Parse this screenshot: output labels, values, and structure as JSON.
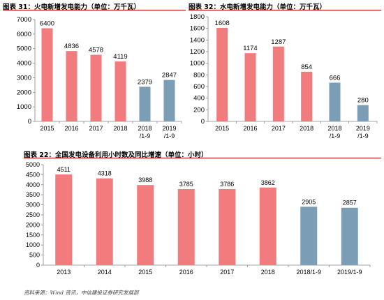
{
  "colors": {
    "red": "#f27b7d",
    "blue": "#7b9db5",
    "title_rule": "#c00000",
    "axis": "#888888",
    "label": "#000000"
  },
  "chart_data": [
    {
      "type": "bar",
      "title": "图表 31：火电新增发电能力（单位：万千瓦）",
      "categories": [
        "2015",
        "2016",
        "2017",
        "2018",
        "2018\n/1-9",
        "2019\n/1-9"
      ],
      "values": [
        6400,
        4836,
        4578,
        4119,
        2379,
        2847
      ],
      "bar_colors": [
        "red",
        "red",
        "red",
        "red",
        "blue",
        "blue"
      ],
      "ylim": [
        0,
        7000
      ],
      "yticks": [
        0,
        1000,
        2000,
        3000,
        4000,
        5000,
        6000,
        7000
      ],
      "grid": false,
      "legend": "none",
      "data_labels": true
    },
    {
      "type": "bar",
      "title": "图表 32：水电新增发电能力（单位：万千瓦）",
      "categories": [
        "2015",
        "2016",
        "2017",
        "2018",
        "2018\n/1-9",
        "2019\n/1-9"
      ],
      "values": [
        1608,
        1174,
        1287,
        854,
        666,
        280
      ],
      "bar_colors": [
        "red",
        "red",
        "red",
        "red",
        "blue",
        "blue"
      ],
      "ylim": [
        0,
        1800
      ],
      "yticks": [
        0,
        200,
        400,
        600,
        800,
        1000,
        1200,
        1400,
        1600,
        1800
      ],
      "grid": false,
      "legend": "none",
      "data_labels": true
    },
    {
      "type": "bar",
      "title": "图表 22：全国发电设备利用小时数及同比增速（单位：小时）",
      "categories": [
        "2013",
        "2014",
        "2015",
        "2016",
        "2017",
        "2018",
        "2018/1-9",
        "2019/1-9"
      ],
      "values": [
        4511,
        4318,
        3988,
        3785,
        3786,
        3862,
        2905,
        2857
      ],
      "bar_colors": [
        "red",
        "red",
        "red",
        "red",
        "red",
        "red",
        "blue",
        "blue"
      ],
      "ylim": [
        0,
        5000
      ],
      "yticks": [
        0,
        500,
        1000,
        1500,
        2000,
        2500,
        3000,
        3500,
        4000,
        4500,
        5000
      ],
      "grid": false,
      "legend": "none",
      "data_labels": true
    }
  ],
  "source": "资料来源：Wind 资讯，中信建投证券研究发展部"
}
